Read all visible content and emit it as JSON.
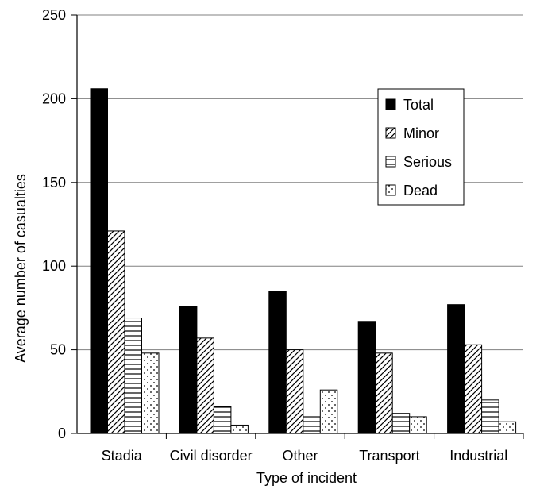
{
  "chart_data": {
    "type": "bar",
    "title": "",
    "xlabel": "Type of incident",
    "ylabel": "Average number of casualties",
    "ylim": [
      0,
      250
    ],
    "yticks": [
      0,
      50,
      100,
      150,
      200,
      250
    ],
    "grid": true,
    "legend_position": "top-right",
    "categories": [
      "Stadia",
      "Civil disorder",
      "Other",
      "Transport",
      "Industrial"
    ],
    "series": [
      {
        "name": "Total",
        "pattern": "solid",
        "values": [
          206,
          76,
          85,
          67,
          77
        ]
      },
      {
        "name": "Minor",
        "pattern": "diagonal",
        "values": [
          121,
          57,
          50,
          48,
          53
        ]
      },
      {
        "name": "Serious",
        "pattern": "horizontal",
        "values": [
          69,
          16,
          10,
          12,
          20
        ]
      },
      {
        "name": "Dead",
        "pattern": "dots",
        "values": [
          48,
          5,
          26,
          10,
          7
        ]
      }
    ],
    "colors": {
      "fill": "#000000",
      "background": "#ffffff",
      "grid": "#808080"
    }
  }
}
